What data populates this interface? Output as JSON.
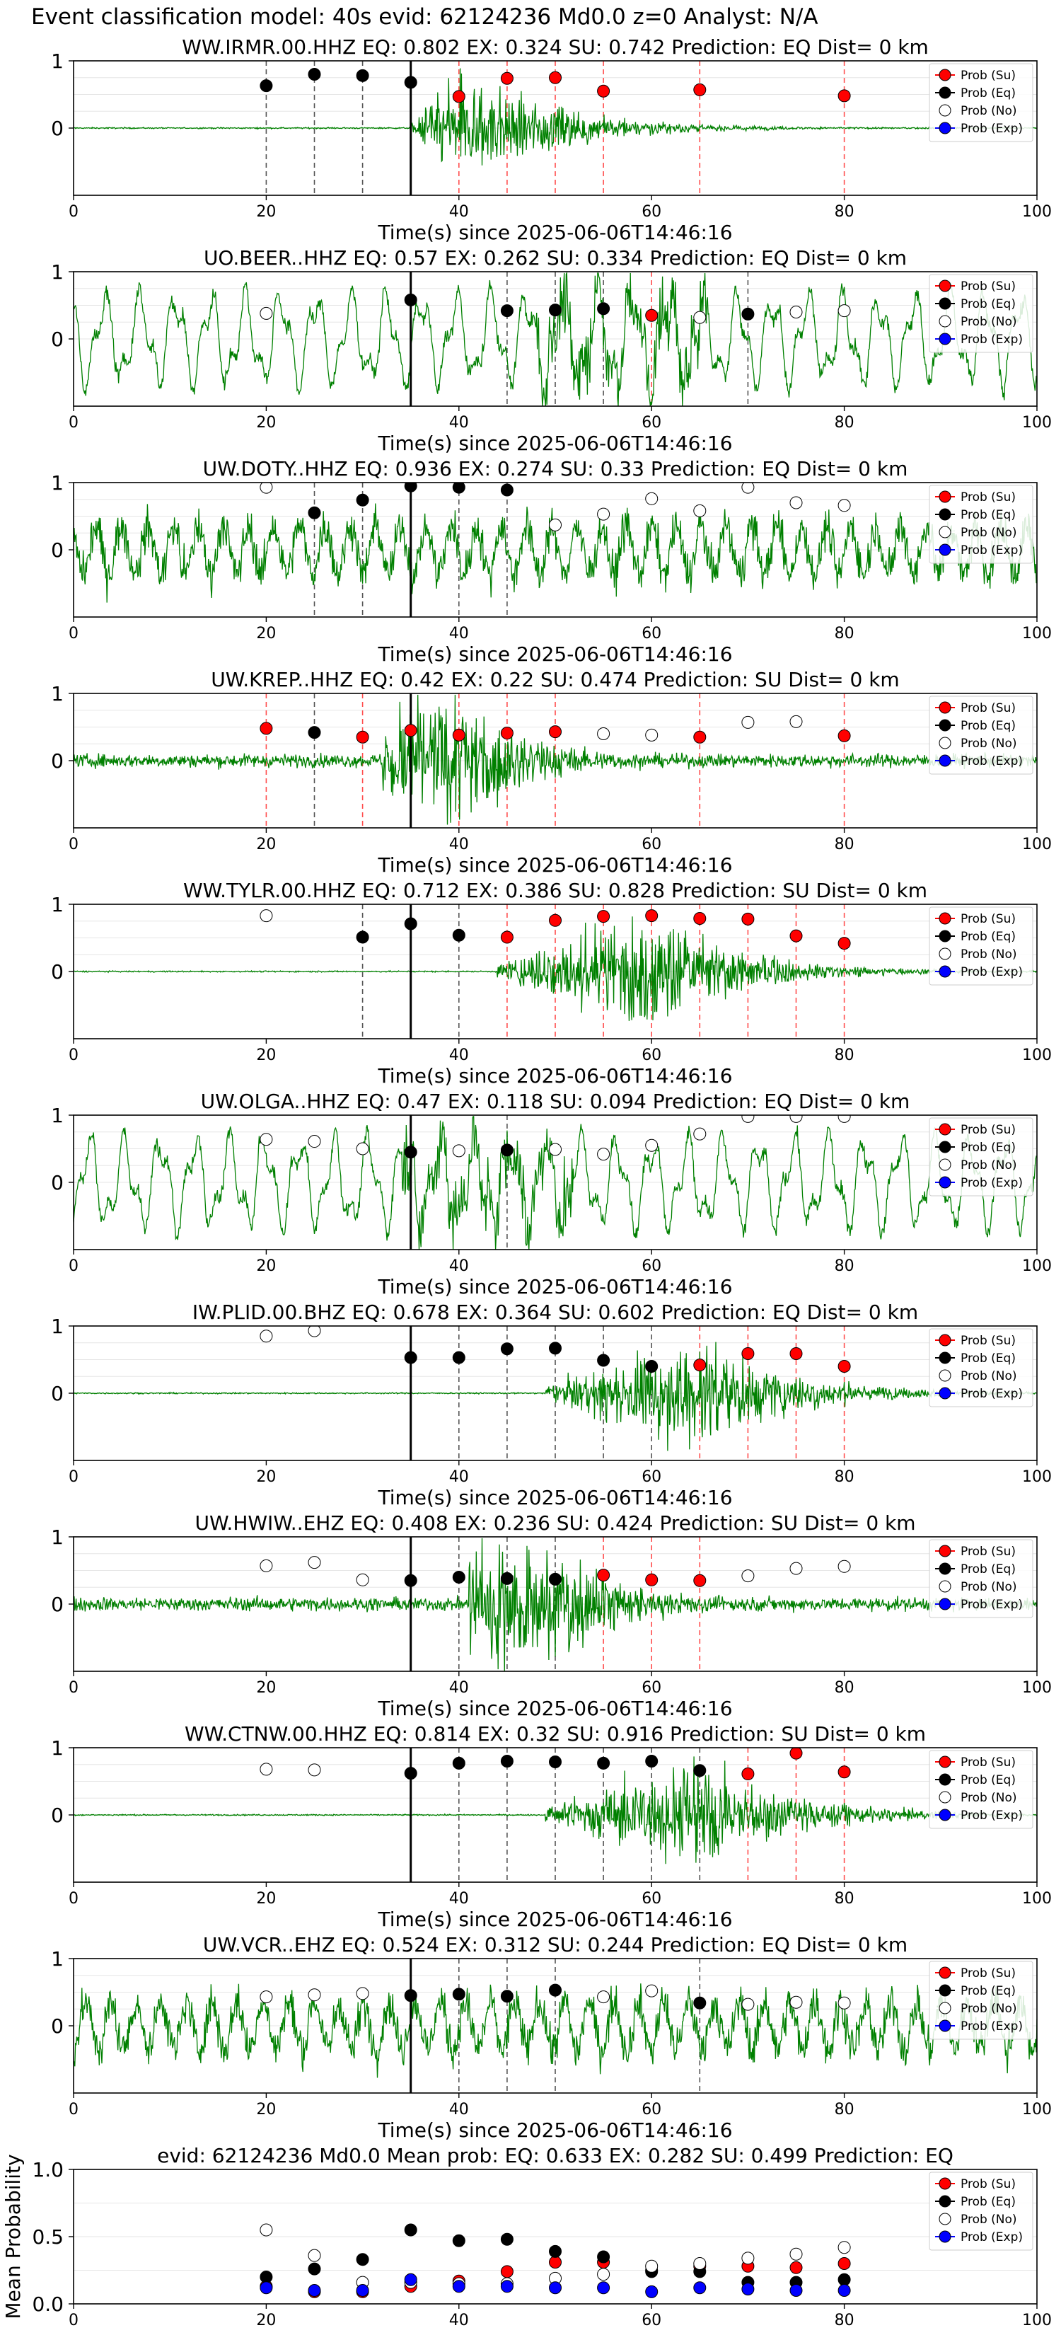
{
  "figure_title": "Event classification model: 40s evid: 62124236 Md0.0 z=0 Analyst: N/A",
  "colors": {
    "su": "#ff0000",
    "eq": "#000000",
    "no": "#ffffff",
    "exp": "#0000ff",
    "trace": "#008000"
  },
  "legend_labels": [
    "Prob (Su)",
    "Prob (Eq)",
    "Prob (No)",
    "Prob (Exp)"
  ],
  "chart_data": [
    {
      "type": "scatter",
      "panel": "waveform",
      "title": "WW.IRMR.00.HHZ   EQ: 0.802  EX: 0.324  SU: 0.742   Prediction: EQ    Dist= 0 km",
      "xlabel": "Time(s) since 2025-06-06T14:46:16",
      "ylabel": "",
      "xlim": [
        0,
        100
      ],
      "ylim": [
        -1,
        1
      ],
      "xticks": [
        "0",
        "20",
        "40",
        "60",
        "80",
        "100"
      ],
      "yticks": [
        "0",
        "1"
      ],
      "legend": "top-right",
      "trace_style": "quiet-then-event",
      "trace_onset": 35,
      "pick_line": 35,
      "points": [
        {
          "x": 20,
          "v": 0.63,
          "c": "eq"
        },
        {
          "x": 25,
          "v": 0.8,
          "c": "eq"
        },
        {
          "x": 30,
          "v": 0.78,
          "c": "eq"
        },
        {
          "x": 35,
          "v": 0.68,
          "c": "eq"
        },
        {
          "x": 40,
          "v": 0.47,
          "c": "su"
        },
        {
          "x": 45,
          "v": 0.74,
          "c": "su"
        },
        {
          "x": 50,
          "v": 0.75,
          "c": "su"
        },
        {
          "x": 55,
          "v": 0.55,
          "c": "su"
        },
        {
          "x": 65,
          "v": 0.57,
          "c": "su"
        },
        {
          "x": 80,
          "v": 0.48,
          "c": "su"
        }
      ]
    },
    {
      "type": "scatter",
      "panel": "waveform",
      "title": "UO.BEER..HHZ   EQ: 0.57  EX: 0.262  SU: 0.334   Prediction: EQ    Dist= 0 km",
      "xlabel": "Time(s) since 2025-06-06T14:46:16",
      "ylabel": "",
      "xlim": [
        0,
        100
      ],
      "ylim": [
        -1,
        1
      ],
      "xticks": [
        "0",
        "20",
        "40",
        "60",
        "80",
        "100"
      ],
      "yticks": [
        "0",
        "1"
      ],
      "legend": "top-right",
      "trace_style": "oscillating",
      "trace_onset": 48,
      "pick_line": 35,
      "points": [
        {
          "x": 20,
          "v": 0.38,
          "c": "no"
        },
        {
          "x": 35,
          "v": 0.58,
          "c": "eq"
        },
        {
          "x": 45,
          "v": 0.42,
          "c": "eq"
        },
        {
          "x": 50,
          "v": 0.43,
          "c": "eq"
        },
        {
          "x": 55,
          "v": 0.45,
          "c": "eq"
        },
        {
          "x": 60,
          "v": 0.35,
          "c": "su"
        },
        {
          "x": 65,
          "v": 0.32,
          "c": "no"
        },
        {
          "x": 70,
          "v": 0.37,
          "c": "eq"
        },
        {
          "x": 75,
          "v": 0.4,
          "c": "no"
        },
        {
          "x": 80,
          "v": 0.42,
          "c": "no"
        }
      ]
    },
    {
      "type": "scatter",
      "panel": "waveform",
      "title": "UW.DOTY..HHZ   EQ: 0.936  EX: 0.274  SU: 0.33   Prediction: EQ    Dist= 0 km",
      "xlabel": "Time(s) since 2025-06-06T14:46:16",
      "ylabel": "",
      "xlim": [
        0,
        100
      ],
      "ylim": [
        -1,
        1
      ],
      "xticks": [
        "0",
        "20",
        "40",
        "60",
        "80",
        "100"
      ],
      "yticks": [
        "0",
        "1"
      ],
      "legend": "top-right",
      "trace_style": "noisy",
      "trace_onset": 35,
      "pick_line": 35,
      "points": [
        {
          "x": 20,
          "v": 0.93,
          "c": "no"
        },
        {
          "x": 25,
          "v": 0.55,
          "c": "eq"
        },
        {
          "x": 30,
          "v": 0.74,
          "c": "eq"
        },
        {
          "x": 35,
          "v": 0.95,
          "c": "eq"
        },
        {
          "x": 40,
          "v": 0.93,
          "c": "eq"
        },
        {
          "x": 45,
          "v": 0.89,
          "c": "eq"
        },
        {
          "x": 50,
          "v": 0.37,
          "c": "no"
        },
        {
          "x": 55,
          "v": 0.53,
          "c": "no"
        },
        {
          "x": 60,
          "v": 0.76,
          "c": "no"
        },
        {
          "x": 65,
          "v": 0.58,
          "c": "no"
        },
        {
          "x": 70,
          "v": 0.93,
          "c": "no"
        },
        {
          "x": 75,
          "v": 0.7,
          "c": "no"
        },
        {
          "x": 80,
          "v": 0.66,
          "c": "no"
        }
      ]
    },
    {
      "type": "scatter",
      "panel": "waveform",
      "title": "UW.KREP..HHZ   EQ: 0.42  EX: 0.22  SU: 0.474   Prediction: SU    Dist= 0 km",
      "xlabel": "Time(s) since 2025-06-06T14:46:16",
      "ylabel": "",
      "xlim": [
        0,
        100
      ],
      "ylim": [
        -1,
        1
      ],
      "xticks": [
        "0",
        "20",
        "40",
        "60",
        "80",
        "100"
      ],
      "yticks": [
        "0",
        "1"
      ],
      "legend": "top-right",
      "trace_style": "noise-burst",
      "trace_onset": 38,
      "pick_line": 35,
      "points": [
        {
          "x": 20,
          "v": 0.48,
          "c": "su"
        },
        {
          "x": 25,
          "v": 0.42,
          "c": "eq"
        },
        {
          "x": 30,
          "v": 0.35,
          "c": "su"
        },
        {
          "x": 35,
          "v": 0.45,
          "c": "su"
        },
        {
          "x": 40,
          "v": 0.38,
          "c": "su"
        },
        {
          "x": 45,
          "v": 0.41,
          "c": "su"
        },
        {
          "x": 50,
          "v": 0.43,
          "c": "su"
        },
        {
          "x": 55,
          "v": 0.4,
          "c": "no"
        },
        {
          "x": 60,
          "v": 0.38,
          "c": "no"
        },
        {
          "x": 65,
          "v": 0.35,
          "c": "su"
        },
        {
          "x": 70,
          "v": 0.57,
          "c": "no"
        },
        {
          "x": 75,
          "v": 0.58,
          "c": "no"
        },
        {
          "x": 80,
          "v": 0.37,
          "c": "su"
        }
      ]
    },
    {
      "type": "scatter",
      "panel": "waveform",
      "title": "WW.TYLR.00.HHZ   EQ: 0.712  EX: 0.386  SU: 0.828   Prediction: SU    Dist= 0 km",
      "xlabel": "Time(s) since 2025-06-06T14:46:16",
      "ylabel": "",
      "xlim": [
        0,
        100
      ],
      "ylim": [
        -1,
        1
      ],
      "xticks": [
        "0",
        "20",
        "40",
        "60",
        "80",
        "100"
      ],
      "yticks": [
        "0",
        "1"
      ],
      "legend": "top-right",
      "trace_style": "quiet-then-event",
      "trace_onset": 44,
      "pick_line": 35,
      "points": [
        {
          "x": 20,
          "v": 0.83,
          "c": "no"
        },
        {
          "x": 30,
          "v": 0.51,
          "c": "eq"
        },
        {
          "x": 35,
          "v": 0.71,
          "c": "eq"
        },
        {
          "x": 40,
          "v": 0.54,
          "c": "eq"
        },
        {
          "x": 45,
          "v": 0.51,
          "c": "su"
        },
        {
          "x": 50,
          "v": 0.76,
          "c": "su"
        },
        {
          "x": 55,
          "v": 0.82,
          "c": "su"
        },
        {
          "x": 60,
          "v": 0.83,
          "c": "su"
        },
        {
          "x": 65,
          "v": 0.79,
          "c": "su"
        },
        {
          "x": 70,
          "v": 0.78,
          "c": "su"
        },
        {
          "x": 75,
          "v": 0.53,
          "c": "su"
        },
        {
          "x": 80,
          "v": 0.42,
          "c": "su"
        }
      ]
    },
    {
      "type": "scatter",
      "panel": "waveform",
      "title": "UW.OLGA..HHZ   EQ: 0.47  EX: 0.118  SU: 0.094   Prediction: EQ    Dist= 0 km",
      "xlabel": "Time(s) since 2025-06-06T14:46:16",
      "ylabel": "",
      "xlim": [
        0,
        100
      ],
      "ylim": [
        -1,
        1
      ],
      "xticks": [
        "0",
        "20",
        "40",
        "60",
        "80",
        "100"
      ],
      "yticks": [
        "0",
        "1"
      ],
      "legend": "top-right",
      "trace_style": "oscillating",
      "trace_onset": 34,
      "pick_line": 35,
      "points": [
        {
          "x": 20,
          "v": 0.64,
          "c": "no"
        },
        {
          "x": 25,
          "v": 0.61,
          "c": "no"
        },
        {
          "x": 30,
          "v": 0.5,
          "c": "no"
        },
        {
          "x": 35,
          "v": 0.45,
          "c": "eq"
        },
        {
          "x": 40,
          "v": 0.47,
          "c": "no"
        },
        {
          "x": 45,
          "v": 0.48,
          "c": "eq"
        },
        {
          "x": 50,
          "v": 0.49,
          "c": "no"
        },
        {
          "x": 55,
          "v": 0.42,
          "c": "no"
        },
        {
          "x": 60,
          "v": 0.55,
          "c": "no"
        },
        {
          "x": 65,
          "v": 0.72,
          "c": "no"
        },
        {
          "x": 70,
          "v": 0.98,
          "c": "no"
        },
        {
          "x": 75,
          "v": 0.98,
          "c": "no"
        },
        {
          "x": 80,
          "v": 0.98,
          "c": "no"
        }
      ]
    },
    {
      "type": "scatter",
      "panel": "waveform",
      "title": "IW.PLID.00.BHZ   EQ: 0.678  EX: 0.364  SU: 0.602   Prediction: EQ    Dist= 0 km",
      "xlabel": "Time(s) since 2025-06-06T14:46:16",
      "ylabel": "",
      "xlim": [
        0,
        100
      ],
      "ylim": [
        -1,
        1
      ],
      "xticks": [
        "0",
        "20",
        "40",
        "60",
        "80",
        "100"
      ],
      "yticks": [
        "0",
        "1"
      ],
      "legend": "top-right",
      "trace_style": "quiet-then-event",
      "trace_onset": 49,
      "pick_line": 35,
      "points": [
        {
          "x": 20,
          "v": 0.85,
          "c": "no"
        },
        {
          "x": 25,
          "v": 0.93,
          "c": "no"
        },
        {
          "x": 35,
          "v": 0.53,
          "c": "eq"
        },
        {
          "x": 40,
          "v": 0.53,
          "c": "eq"
        },
        {
          "x": 45,
          "v": 0.66,
          "c": "eq"
        },
        {
          "x": 50,
          "v": 0.67,
          "c": "eq"
        },
        {
          "x": 55,
          "v": 0.49,
          "c": "eq"
        },
        {
          "x": 60,
          "v": 0.4,
          "c": "eq"
        },
        {
          "x": 65,
          "v": 0.42,
          "c": "su"
        },
        {
          "x": 70,
          "v": 0.59,
          "c": "su"
        },
        {
          "x": 75,
          "v": 0.59,
          "c": "su"
        },
        {
          "x": 80,
          "v": 0.4,
          "c": "su"
        }
      ]
    },
    {
      "type": "scatter",
      "panel": "waveform",
      "title": "UW.HWIW..EHZ   EQ: 0.408  EX: 0.236  SU: 0.424   Prediction: SU    Dist= 0 km",
      "xlabel": "Time(s) since 2025-06-06T14:46:16",
      "ylabel": "",
      "xlim": [
        0,
        100
      ],
      "ylim": [
        -1,
        1
      ],
      "xticks": [
        "0",
        "20",
        "40",
        "60",
        "80",
        "100"
      ],
      "yticks": [
        "0",
        "1"
      ],
      "legend": "top-right",
      "trace_style": "noise-burst",
      "trace_onset": 47,
      "pick_line": 35,
      "points": [
        {
          "x": 20,
          "v": 0.57,
          "c": "no"
        },
        {
          "x": 25,
          "v": 0.62,
          "c": "no"
        },
        {
          "x": 30,
          "v": 0.36,
          "c": "no"
        },
        {
          "x": 35,
          "v": 0.35,
          "c": "eq"
        },
        {
          "x": 40,
          "v": 0.4,
          "c": "eq"
        },
        {
          "x": 45,
          "v": 0.38,
          "c": "eq"
        },
        {
          "x": 50,
          "v": 0.37,
          "c": "eq"
        },
        {
          "x": 55,
          "v": 0.43,
          "c": "su"
        },
        {
          "x": 60,
          "v": 0.36,
          "c": "su"
        },
        {
          "x": 65,
          "v": 0.35,
          "c": "su"
        },
        {
          "x": 70,
          "v": 0.42,
          "c": "no"
        },
        {
          "x": 75,
          "v": 0.53,
          "c": "no"
        },
        {
          "x": 80,
          "v": 0.56,
          "c": "no"
        }
      ]
    },
    {
      "type": "scatter",
      "panel": "waveform",
      "title": "WW.CTNW.00.HHZ   EQ: 0.814  EX: 0.32  SU: 0.916   Prediction: SU    Dist= 0 km",
      "xlabel": "Time(s) since 2025-06-06T14:46:16",
      "ylabel": "",
      "xlim": [
        0,
        100
      ],
      "ylim": [
        -1,
        1
      ],
      "xticks": [
        "0",
        "20",
        "40",
        "60",
        "80",
        "100"
      ],
      "yticks": [
        "0",
        "1"
      ],
      "legend": "top-right",
      "trace_style": "quiet-then-event",
      "trace_onset": 49,
      "pick_line": 35,
      "points": [
        {
          "x": 20,
          "v": 0.68,
          "c": "no"
        },
        {
          "x": 25,
          "v": 0.67,
          "c": "no"
        },
        {
          "x": 35,
          "v": 0.62,
          "c": "eq"
        },
        {
          "x": 40,
          "v": 0.77,
          "c": "eq"
        },
        {
          "x": 45,
          "v": 0.8,
          "c": "eq"
        },
        {
          "x": 50,
          "v": 0.79,
          "c": "eq"
        },
        {
          "x": 55,
          "v": 0.77,
          "c": "eq"
        },
        {
          "x": 60,
          "v": 0.8,
          "c": "eq"
        },
        {
          "x": 65,
          "v": 0.66,
          "c": "eq"
        },
        {
          "x": 70,
          "v": 0.61,
          "c": "su"
        },
        {
          "x": 75,
          "v": 0.92,
          "c": "su"
        },
        {
          "x": 80,
          "v": 0.64,
          "c": "su"
        }
      ]
    },
    {
      "type": "scatter",
      "panel": "waveform",
      "title": "UW.VCR..EHZ   EQ: 0.524  EX: 0.312  SU: 0.244   Prediction: EQ    Dist= 0 km",
      "xlabel": "Time(s) since 2025-06-06T14:46:16",
      "ylabel": "",
      "xlim": [
        0,
        100
      ],
      "ylim": [
        -1,
        1
      ],
      "xticks": [
        "0",
        "20",
        "40",
        "60",
        "80",
        "100"
      ],
      "yticks": [
        "0",
        "1"
      ],
      "legend": "top-right",
      "trace_style": "noisy",
      "trace_onset": 35,
      "pick_line": 35,
      "points": [
        {
          "x": 20,
          "v": 0.43,
          "c": "no"
        },
        {
          "x": 25,
          "v": 0.46,
          "c": "no"
        },
        {
          "x": 30,
          "v": 0.48,
          "c": "no"
        },
        {
          "x": 35,
          "v": 0.45,
          "c": "eq"
        },
        {
          "x": 40,
          "v": 0.47,
          "c": "eq"
        },
        {
          "x": 45,
          "v": 0.44,
          "c": "eq"
        },
        {
          "x": 50,
          "v": 0.53,
          "c": "eq"
        },
        {
          "x": 55,
          "v": 0.43,
          "c": "no"
        },
        {
          "x": 60,
          "v": 0.52,
          "c": "no"
        },
        {
          "x": 65,
          "v": 0.34,
          "c": "eq"
        },
        {
          "x": 70,
          "v": 0.32,
          "c": "no"
        },
        {
          "x": 75,
          "v": 0.35,
          "c": "no"
        },
        {
          "x": 80,
          "v": 0.34,
          "c": "no"
        }
      ]
    },
    {
      "type": "scatter",
      "panel": "mean",
      "title": "evid: 62124236  Md0.0   Mean prob:   EQ: 0.633  EX: 0.282  SU: 0.499   Prediction: EQ",
      "xlabel": "",
      "ylabel": "Mean Probability",
      "xlim": [
        0,
        100
      ],
      "ylim": [
        0,
        1
      ],
      "xticks": [
        "0",
        "20",
        "40",
        "60",
        "80",
        "100"
      ],
      "yticks": [
        "0.0",
        "0.5",
        "1.0"
      ],
      "legend": "top-right",
      "x": [
        20,
        25,
        30,
        35,
        40,
        45,
        50,
        55,
        60,
        65,
        70,
        75,
        80
      ],
      "series": [
        {
          "name": "Prob (Su)",
          "c": "su",
          "values": [
            0.13,
            0.09,
            0.09,
            0.13,
            0.17,
            0.24,
            0.31,
            0.31,
            0.25,
            0.28,
            0.28,
            0.27,
            0.3
          ]
        },
        {
          "name": "Prob (Eq)",
          "c": "eq",
          "values": [
            0.2,
            0.26,
            0.33,
            0.55,
            0.47,
            0.48,
            0.39,
            0.35,
            0.24,
            0.24,
            0.16,
            0.16,
            0.18
          ]
        },
        {
          "name": "Prob (No)",
          "c": "no",
          "values": [
            0.55,
            0.36,
            0.16,
            0.16,
            0.15,
            0.15,
            0.19,
            0.22,
            0.28,
            0.3,
            0.34,
            0.37,
            0.42
          ]
        },
        {
          "name": "Prob (Exp)",
          "c": "exp",
          "values": [
            0.12,
            0.1,
            0.1,
            0.18,
            0.13,
            0.13,
            0.12,
            0.12,
            0.09,
            0.12,
            0.11,
            0.1,
            0.1
          ]
        }
      ]
    }
  ]
}
